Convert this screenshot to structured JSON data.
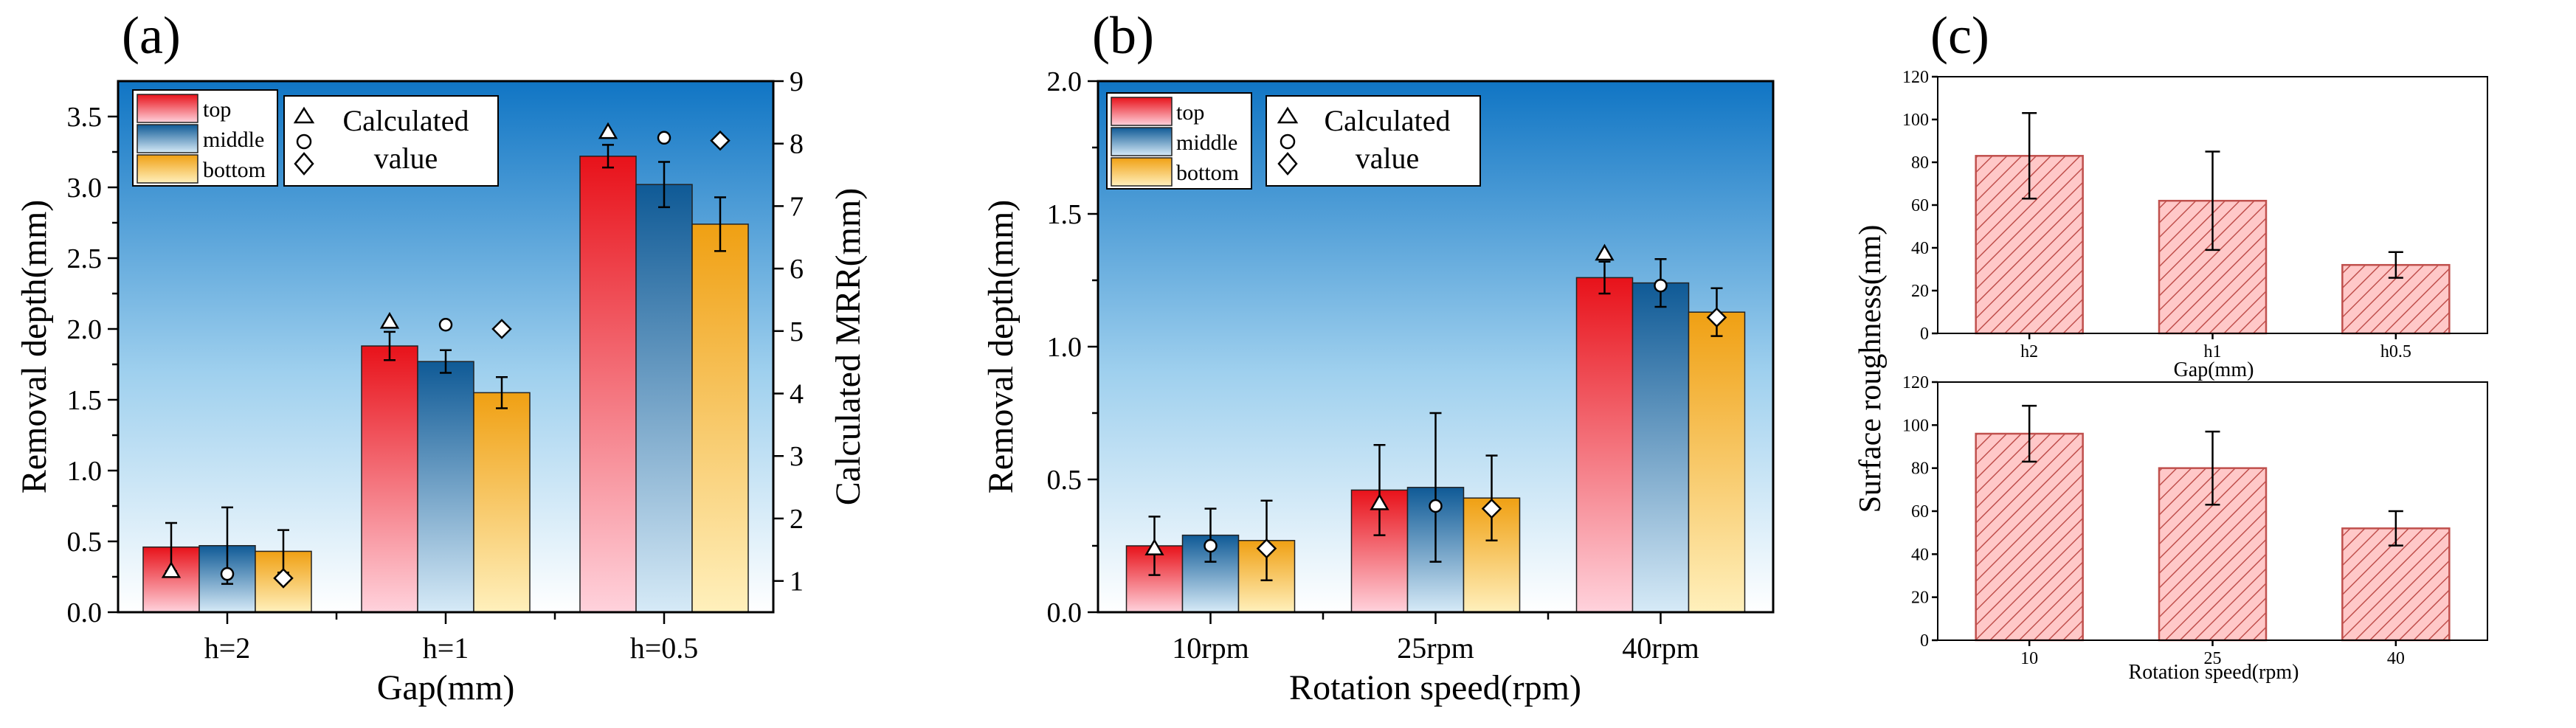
{
  "panel_labels": [
    "(a)",
    "(b)",
    "(c)"
  ],
  "colors": {
    "top": [
      "#e8121a",
      "#ffd2dc"
    ],
    "middle": [
      "#0f5a96",
      "#d6eaf7"
    ],
    "bottom": [
      "#f0a013",
      "#fff0bc"
    ],
    "bg_top": "#1075c4",
    "bg_bottom": "#ffffff",
    "roughness": "#ffc8c8",
    "roughness_line": "#c0504d"
  },
  "chart_data": [
    {
      "id": "a",
      "type": "bar",
      "categories": [
        "h=2",
        "h=1",
        "h=0.5"
      ],
      "xlabel": "Gap(mm)",
      "ylabel": "Removal depth(mm)",
      "y2label": "Calculated MRR(mm)",
      "ylim": [
        0,
        3.75
      ],
      "y2lim": [
        0.5,
        9
      ],
      "yticks": [
        "0.0",
        "0.5",
        "1.0",
        "1.5",
        "2.0",
        "2.5",
        "3.0",
        "3.5"
      ],
      "y2ticks": [
        "1",
        "2",
        "3",
        "4",
        "5",
        "6",
        "7",
        "8",
        "9"
      ],
      "series": [
        {
          "name": "top",
          "values": [
            0.46,
            1.88,
            3.22
          ],
          "errors": [
            0.17,
            0.1,
            0.08
          ]
        },
        {
          "name": "middle",
          "values": [
            0.47,
            1.77,
            3.02
          ],
          "errors": [
            0.27,
            0.08,
            0.16
          ]
        },
        {
          "name": "bottom",
          "values": [
            0.43,
            1.55,
            2.74
          ],
          "errors": [
            0.15,
            0.11,
            0.19
          ]
        }
      ],
      "calculated": [
        [
          0.29,
          2.05,
          3.39
        ],
        [
          0.27,
          2.03,
          3.35
        ],
        [
          0.24,
          2.0,
          3.33
        ]
      ],
      "legend": {
        "entries": [
          "top",
          "middle",
          "bottom"
        ],
        "calc_label_1": "Calculated",
        "calc_label_2": "value"
      }
    },
    {
      "id": "b",
      "type": "bar",
      "categories": [
        "10rpm",
        "25rpm",
        "40rpm"
      ],
      "xlabel": "Rotation speed(rpm)",
      "ylabel": "Removal depth(mm)",
      "ylim": [
        0,
        2.0
      ],
      "yticks": [
        "0.0",
        "0.5",
        "1.0",
        "1.5",
        "2.0"
      ],
      "series": [
        {
          "name": "top",
          "values": [
            0.25,
            0.46,
            1.26
          ],
          "errors": [
            0.11,
            0.17,
            0.06
          ]
        },
        {
          "name": "middle",
          "values": [
            0.29,
            0.47,
            1.24
          ],
          "errors": [
            0.1,
            0.28,
            0.09
          ]
        },
        {
          "name": "bottom",
          "values": [
            0.27,
            0.43,
            1.13
          ],
          "errors": [
            0.15,
            0.16,
            0.09
          ]
        }
      ],
      "calculated": [
        [
          0.24,
          0.41,
          1.35
        ],
        [
          0.25,
          0.4,
          1.23
        ],
        [
          0.24,
          0.39,
          1.11
        ]
      ],
      "legend": {
        "entries": [
          "top",
          "middle",
          "bottom"
        ],
        "calc_label_1": "Calculated",
        "calc_label_2": "value"
      }
    },
    {
      "id": "c1",
      "type": "bar",
      "categories": [
        "h2",
        "h1",
        "h0.5"
      ],
      "xlabel": "Gap(mm)",
      "ylim": [
        0,
        120
      ],
      "yticks": [
        "0",
        "20",
        "40",
        "60",
        "80",
        "100",
        "120"
      ],
      "values": [
        83,
        62,
        32
      ],
      "errors": [
        20,
        23,
        6
      ]
    },
    {
      "id": "c2",
      "type": "bar",
      "categories": [
        "10",
        "25",
        "40"
      ],
      "xlabel": "Rotation speed(rpm)",
      "ylim": [
        0,
        120
      ],
      "yticks": [
        "0",
        "20",
        "40",
        "60",
        "80",
        "100",
        "120"
      ],
      "values": [
        96,
        80,
        52
      ],
      "errors": [
        13,
        17,
        8
      ]
    }
  ],
  "shared_ylabel_c": "Surface roughness(nm)"
}
